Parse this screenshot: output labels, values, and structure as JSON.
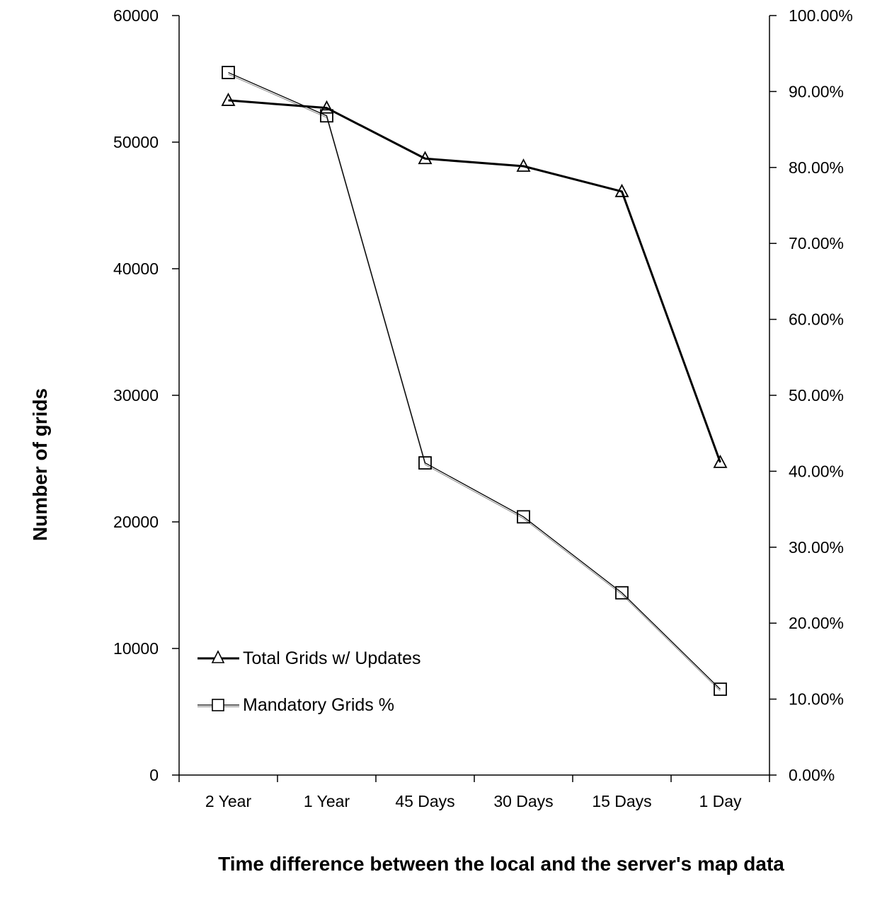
{
  "chart_data": {
    "type": "line",
    "categories": [
      "2 Year",
      "1 Year",
      "45 Days",
      "30 Days",
      "15 Days",
      "1 Day"
    ],
    "xlabel": "Time difference between the local and the server's map data",
    "ylabel": "Number of grids",
    "ylim": [
      0,
      60000
    ],
    "yticks": [
      "0",
      "10000",
      "20000",
      "30000",
      "40000",
      "50000",
      "60000"
    ],
    "y2lim": [
      0,
      1.0
    ],
    "y2ticks": [
      "0.00%",
      "10.00%",
      "20.00%",
      "30.00%",
      "40.00%",
      "50.00%",
      "60.00%",
      "70.00%",
      "80.00%",
      "90.00%",
      "100.00%"
    ],
    "legend_position": "bottom-left",
    "series": [
      {
        "name": "Total Grids w/ Updates",
        "axis": "left",
        "marker": "triangle",
        "values": [
          53300,
          52700,
          48700,
          48100,
          46100,
          24700
        ]
      },
      {
        "name": "Mandatory Grids %",
        "axis": "right",
        "marker": "square",
        "values": [
          0.925,
          0.868,
          0.411,
          0.34,
          0.24,
          0.113
        ]
      }
    ]
  }
}
